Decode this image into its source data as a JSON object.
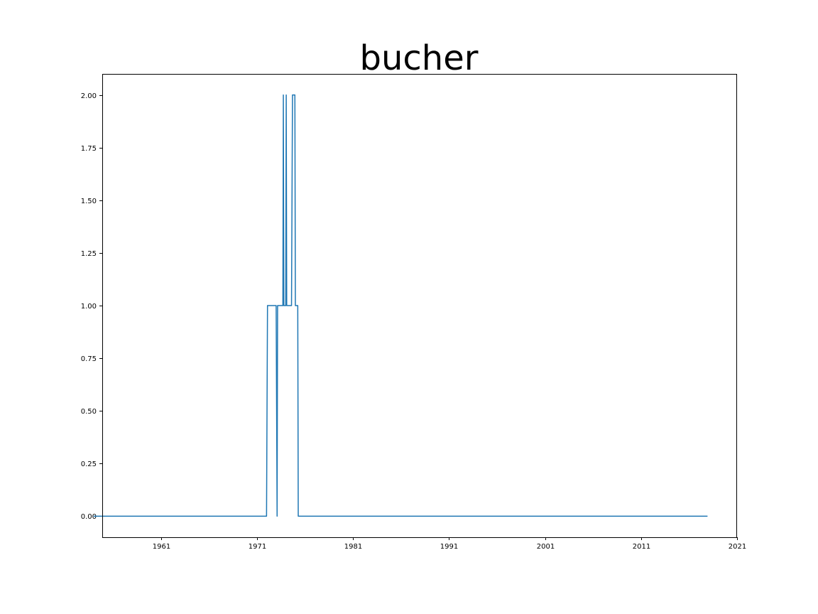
{
  "chart_data": {
    "type": "line",
    "title": "bucher",
    "xlabel": "",
    "ylabel": "",
    "xlim": [
      1954.9,
      2020.9
    ],
    "ylim": [
      -0.1,
      2.1
    ],
    "x_ticks": [
      1961,
      1971,
      1981,
      1991,
      2001,
      2011,
      2021
    ],
    "x_tick_labels": [
      "1961",
      "1971",
      "1981",
      "1991",
      "2001",
      "2011",
      "2021"
    ],
    "y_ticks": [
      0,
      0.25,
      0.5,
      0.75,
      1,
      1.25,
      1.5,
      1.75,
      2
    ],
    "y_tick_labels": [
      "0.00",
      "0.25",
      "0.50",
      "0.75",
      "1.00",
      "1.25",
      "1.50",
      "1.75",
      "2.00"
    ],
    "grid": false,
    "color": "#1f77b4",
    "series": [
      {
        "x": [
          1954.0,
          1972.0,
          1972.1,
          1973.0,
          1973.1,
          1973.15,
          1973.2,
          1973.7,
          1973.75,
          1973.8,
          1973.85,
          1974.0,
          1974.05,
          1974.1,
          1974.15,
          1974.6,
          1974.7,
          1974.95,
          1975.0,
          1975.2,
          1975.25,
          1975.3,
          1975.35,
          1975.5,
          2017.9
        ],
        "y": [
          0,
          0,
          1,
          1,
          0,
          1,
          1,
          1,
          2,
          1,
          1,
          1,
          2,
          1,
          1,
          1,
          2,
          2,
          1,
          1,
          1,
          0,
          0,
          0,
          0
        ]
      }
    ]
  }
}
